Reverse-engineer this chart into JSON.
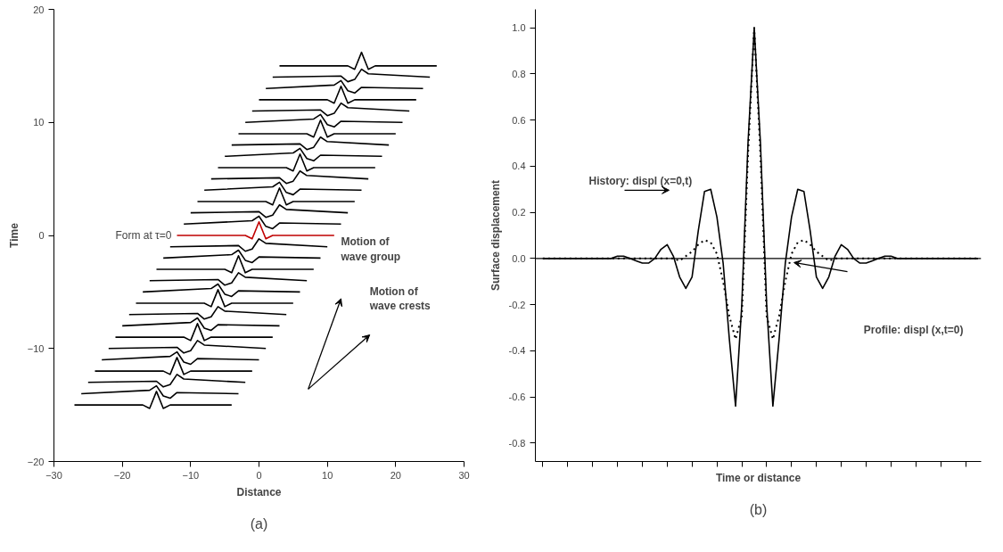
{
  "chart_data": [
    {
      "type": "line",
      "xlabel": "Distance",
      "ylabel": "Time",
      "xlim": [
        -30,
        30
      ],
      "ylim": [
        -20,
        20
      ],
      "xticks": [
        -30,
        -20,
        -10,
        0,
        10,
        20,
        30
      ],
      "yticks": [
        -20,
        -10,
        0,
        10,
        20
      ],
      "grid": false,
      "line_style": "solid",
      "annotations": [
        "Motion of\nwave group",
        "Motion of\nwave crests",
        "(a)"
      ],
      "series": [
        {
          "color": "#000000",
          "x": [
            -27,
            -17,
            -16,
            -15,
            -14,
            -13,
            -4
          ],
          "values": [
            -15,
            -15,
            -15.3,
            -13.8,
            -15.3,
            -15,
            -15
          ]
        },
        {
          "color": "#000000",
          "x": [
            -26,
            -16,
            -15,
            -14,
            -13,
            -12,
            -3
          ],
          "values": [
            -14,
            -13.7,
            -13.3,
            -14.2,
            -14.4,
            -13.9,
            -14
          ]
        },
        {
          "color": "#000000",
          "x": [
            -25,
            -15,
            -14,
            -13,
            -12,
            -11,
            -2
          ],
          "values": [
            -13,
            -12.9,
            -13.4,
            -13.2,
            -12.3,
            -12.7,
            -13
          ]
        },
        {
          "color": "#000000",
          "x": [
            -24,
            -14,
            -13,
            -12,
            -11,
            -10,
            -1
          ],
          "values": [
            -12,
            -12,
            -12.3,
            -10.8,
            -12.3,
            -12,
            -12
          ]
        },
        {
          "color": "#000000",
          "x": [
            -23,
            -13,
            -12,
            -11,
            -10,
            -9,
            0
          ],
          "values": [
            -11,
            -10.7,
            -10.3,
            -11.2,
            -11.4,
            -10.9,
            -11
          ]
        },
        {
          "color": "#000000",
          "x": [
            -22,
            -12,
            -11,
            -10,
            -9,
            -8,
            1
          ],
          "values": [
            -10,
            -9.9,
            -10.4,
            -10.2,
            -9.3,
            -9.7,
            -10
          ]
        },
        {
          "color": "#000000",
          "x": [
            -21,
            -11,
            -10,
            -9,
            -8,
            -7,
            2
          ],
          "values": [
            -9,
            -9,
            -9.3,
            -7.8,
            -9.3,
            -9,
            -9
          ]
        },
        {
          "color": "#000000",
          "x": [
            -20,
            -10,
            -9,
            -8,
            -7,
            -6,
            3
          ],
          "values": [
            -8,
            -7.7,
            -7.3,
            -8.2,
            -8.4,
            -7.9,
            -8
          ]
        },
        {
          "color": "#000000",
          "x": [
            -19,
            -9,
            -8,
            -7,
            -6,
            -5,
            4
          ],
          "values": [
            -7,
            -6.9,
            -7.4,
            -7.2,
            -6.3,
            -6.7,
            -7
          ]
        },
        {
          "color": "#000000",
          "x": [
            -18,
            -8,
            -7,
            -6,
            -5,
            -4,
            5
          ],
          "values": [
            -6,
            -6,
            -6.3,
            -4.8,
            -6.3,
            -6,
            -6
          ]
        },
        {
          "color": "#000000",
          "x": [
            -17,
            -7,
            -6,
            -5,
            -4,
            -3,
            6
          ],
          "values": [
            -5,
            -4.7,
            -4.3,
            -5.2,
            -5.4,
            -4.9,
            -5
          ]
        },
        {
          "color": "#000000",
          "x": [
            -16,
            -6,
            -5,
            -4,
            -3,
            -2,
            7
          ],
          "values": [
            -4,
            -3.9,
            -4.4,
            -4.2,
            -3.3,
            -3.7,
            -4
          ]
        },
        {
          "color": "#000000",
          "x": [
            -15,
            -5,
            -4,
            -3,
            -2,
            -1,
            8
          ],
          "values": [
            -3,
            -3,
            -3.3,
            -1.8,
            -3.3,
            -3,
            -3
          ]
        },
        {
          "color": "#000000",
          "x": [
            -14,
            -4,
            -3,
            -2,
            -1,
            0,
            9
          ],
          "values": [
            -2,
            -1.7,
            -1.3,
            -2.2,
            -2.4,
            -1.9,
            -2
          ]
        },
        {
          "color": "#000000",
          "x": [
            -13,
            -3,
            -2,
            -1,
            0,
            1,
            10
          ],
          "values": [
            -1,
            -0.9,
            -1.4,
            -1.2,
            -0.3,
            -0.7,
            -1
          ]
        },
        {
          "name": "Form at τ=0",
          "color": "#c00000",
          "x": [
            -12,
            -2,
            -1,
            0,
            1,
            2,
            11
          ],
          "values": [
            0,
            0,
            -0.3,
            1.2,
            -0.3,
            0,
            0
          ]
        },
        {
          "color": "#000000",
          "x": [
            -11,
            -1,
            0,
            1,
            2,
            3,
            12
          ],
          "values": [
            1,
            1.3,
            1.7,
            0.8,
            0.6,
            1.1,
            1
          ]
        },
        {
          "color": "#000000",
          "x": [
            -10,
            0,
            1,
            2,
            3,
            4,
            13
          ],
          "values": [
            2,
            2.1,
            1.6,
            1.8,
            2.7,
            2.3,
            2
          ]
        },
        {
          "color": "#000000",
          "x": [
            -9,
            1,
            2,
            3,
            4,
            5,
            14
          ],
          "values": [
            3,
            3,
            2.7,
            4.2,
            2.7,
            3,
            3
          ]
        },
        {
          "color": "#000000",
          "x": [
            -8,
            2,
            3,
            4,
            5,
            6,
            15
          ],
          "values": [
            4,
            4.3,
            4.7,
            3.8,
            3.6,
            4.1,
            4
          ]
        },
        {
          "color": "#000000",
          "x": [
            -7,
            3,
            4,
            5,
            6,
            7,
            16
          ],
          "values": [
            5,
            5.1,
            4.6,
            4.8,
            5.7,
            5.3,
            5
          ]
        },
        {
          "color": "#000000",
          "x": [
            -6,
            4,
            5,
            6,
            7,
            8,
            17
          ],
          "values": [
            6,
            6,
            5.7,
            7.2,
            5.7,
            6,
            6
          ]
        },
        {
          "color": "#000000",
          "x": [
            -5,
            5,
            6,
            7,
            8,
            9,
            18
          ],
          "values": [
            7,
            7.3,
            7.7,
            6.8,
            6.6,
            7.1,
            7
          ]
        },
        {
          "color": "#000000",
          "x": [
            -4,
            6,
            7,
            8,
            9,
            10,
            19
          ],
          "values": [
            8,
            8.1,
            7.6,
            7.8,
            8.7,
            8.3,
            8
          ]
        },
        {
          "color": "#000000",
          "x": [
            -3,
            7,
            8,
            9,
            10,
            11,
            20
          ],
          "values": [
            9,
            9,
            8.7,
            10.2,
            8.7,
            9,
            9
          ]
        },
        {
          "color": "#000000",
          "x": [
            -2,
            8,
            9,
            10,
            11,
            12,
            21
          ],
          "values": [
            10,
            10.3,
            10.7,
            9.8,
            9.6,
            10.1,
            10
          ]
        },
        {
          "color": "#000000",
          "x": [
            -1,
            9,
            10,
            11,
            12,
            13,
            22
          ],
          "values": [
            11,
            11.1,
            10.6,
            10.8,
            11.7,
            11.3,
            11
          ]
        },
        {
          "color": "#000000",
          "x": [
            0,
            10,
            11,
            12,
            13,
            14,
            23
          ],
          "values": [
            12,
            12,
            11.7,
            13.2,
            11.7,
            12,
            12
          ]
        },
        {
          "color": "#000000",
          "x": [
            1,
            11,
            12,
            13,
            14,
            15,
            24
          ],
          "values": [
            13,
            13.3,
            13.7,
            12.8,
            12.6,
            13.1,
            13
          ]
        },
        {
          "color": "#000000",
          "x": [
            2,
            12,
            13,
            14,
            15,
            16,
            25
          ],
          "values": [
            14,
            14.1,
            13.6,
            13.8,
            14.7,
            14.3,
            14
          ]
        },
        {
          "color": "#000000",
          "x": [
            3,
            13,
            14,
            15,
            16,
            17,
            26
          ],
          "values": [
            15,
            15,
            14.7,
            16.2,
            14.7,
            15,
            15
          ]
        }
      ]
    },
    {
      "type": "line",
      "xlabel": "Time or distance",
      "ylabel": "Surface displacement",
      "ylim": [
        -0.88,
        1.08
      ],
      "grid": false,
      "yticks": [
        {
          "value": -0.8,
          "label": "-0.8"
        },
        {
          "value": -0.6,
          "label": "-0.6"
        },
        {
          "value": -0.4,
          "label": "-0.4"
        },
        {
          "value": -0.2,
          "label": "-0.2"
        },
        {
          "value": 0,
          "label": "0.0"
        },
        {
          "value": 0.2,
          "label": "0.2"
        },
        {
          "value": 0.4,
          "label": "0.4"
        },
        {
          "value": 0.6,
          "label": "0.6"
        },
        {
          "value": 0.8,
          "label": "0.8"
        },
        {
          "value": 1,
          "label": "1.0"
        }
      ],
      "ref_lines": [
        {
          "axis": "y",
          "value": 0,
          "color": "#000000"
        }
      ],
      "annotations": [
        "History: displ (x=0,t)",
        "Profile: displ (x,t=0)",
        "(b)"
      ],
      "categories": [
        null,
        null,
        null,
        null,
        null,
        null,
        null,
        null,
        null,
        null,
        null,
        null,
        null,
        null,
        null,
        null,
        null,
        null,
        null,
        null,
        null,
        null,
        null,
        null,
        null,
        null,
        null,
        null,
        null,
        null,
        null,
        null,
        null,
        null,
        null,
        null,
        null,
        null,
        null,
        null,
        null,
        null,
        null,
        null,
        null,
        null,
        null,
        null,
        null,
        null,
        null,
        null,
        null,
        null,
        null,
        null,
        null,
        null,
        null,
        null,
        null,
        null,
        null,
        null,
        null,
        null,
        null,
        null,
        null,
        null,
        null
      ],
      "series": [
        {
          "color": "#000000",
          "line_style": "solid",
          "values": [
            0,
            0,
            0,
            0,
            0,
            0,
            0,
            0,
            0,
            0,
            0,
            0,
            0.01,
            0.01,
            0,
            -0.01,
            -0.02,
            -0.02,
            0,
            0.04,
            0.06,
            0.01,
            -0.08,
            -0.13,
            -0.08,
            0.12,
            0.29,
            0.3,
            0.18,
            -0.02,
            -0.35,
            -0.64,
            -0.2,
            0.5,
            1.0,
            0.5,
            -0.2,
            -0.64,
            -0.35,
            -0.02,
            0.18,
            0.3,
            0.29,
            0.12,
            -0.08,
            -0.13,
            -0.08,
            0.01,
            0.06,
            0.04,
            0,
            -0.02,
            -0.02,
            -0.01,
            0,
            0.01,
            0.01,
            0,
            0,
            0,
            0,
            0,
            0,
            0,
            0,
            0,
            0,
            0,
            0,
            0,
            0
          ]
        },
        {
          "color": "#000000",
          "line_style": "dotted",
          "values": [
            0,
            0,
            0,
            0,
            0,
            0,
            0,
            0,
            0,
            0,
            0,
            0,
            0,
            0,
            0,
            0,
            0,
            0,
            0,
            0,
            0,
            0,
            -0.01,
            0.01,
            0.03,
            0.06,
            0.08,
            0.07,
            0.02,
            -0.1,
            -0.25,
            -0.35,
            -0.25,
            0.45,
            1.0,
            0.45,
            -0.25,
            -0.35,
            -0.25,
            -0.1,
            0.02,
            0.07,
            0.08,
            0.06,
            0.03,
            0.01,
            -0.01,
            0,
            0,
            0,
            0,
            0,
            0,
            0,
            0,
            0,
            0,
            0,
            0,
            0,
            0,
            0,
            0,
            0,
            0,
            0,
            0,
            0,
            0,
            0,
            0
          ]
        }
      ]
    }
  ]
}
